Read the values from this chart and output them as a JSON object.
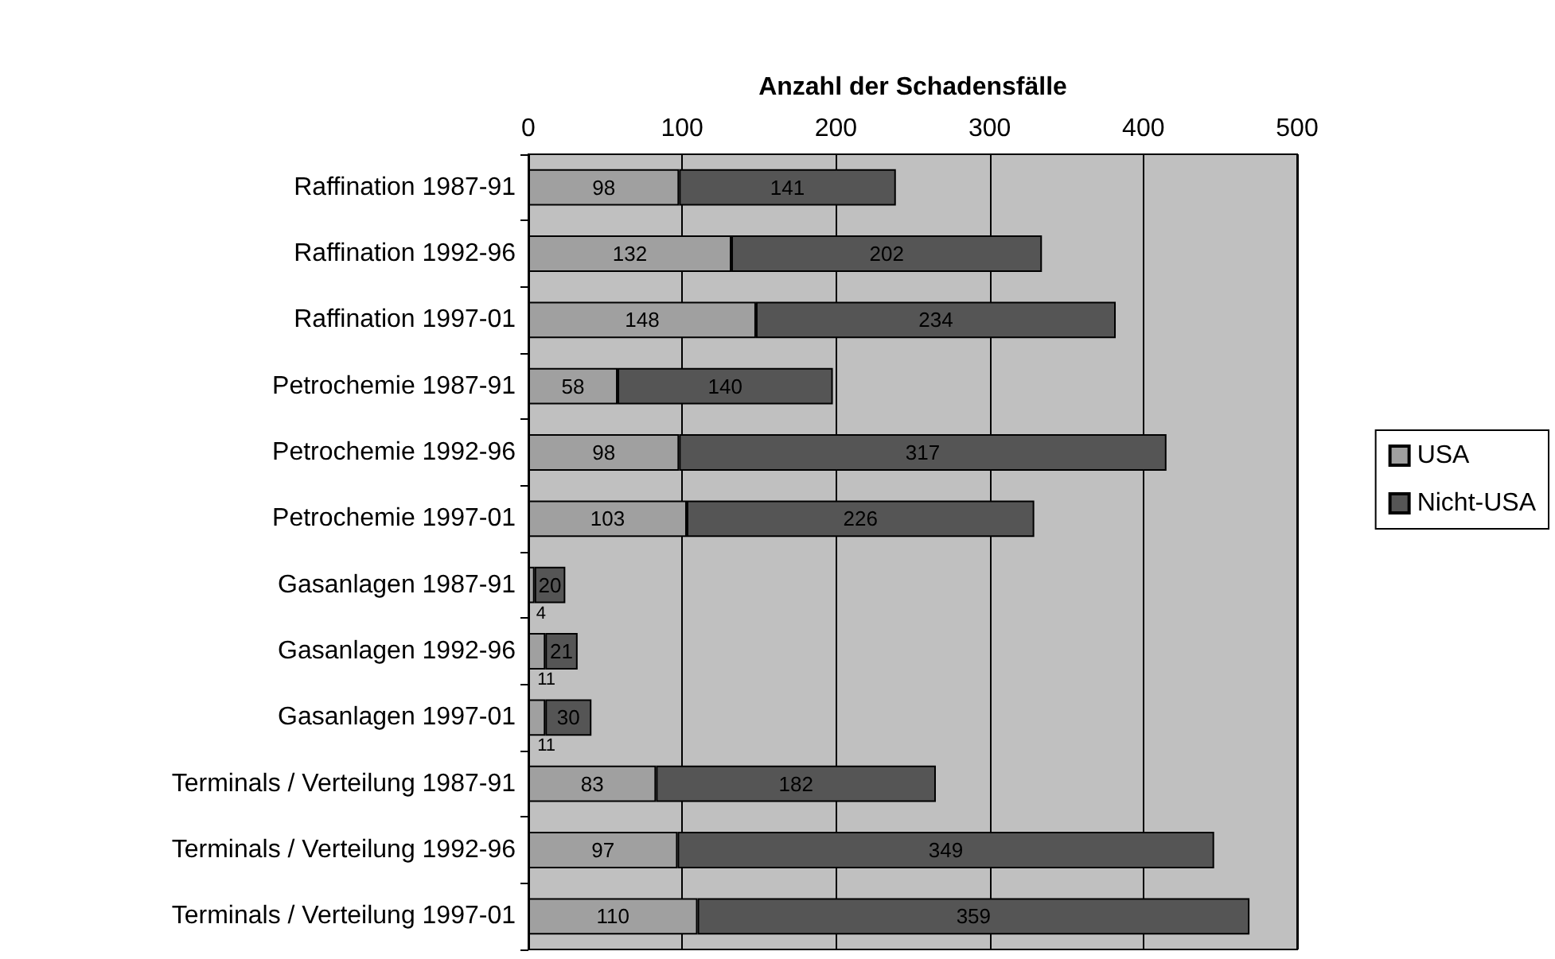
{
  "chart_data": {
    "type": "bar",
    "orientation": "horizontal",
    "stacked": true,
    "xlabel": "Anzahl der Schadensfälle",
    "categories": [
      "Raffination 1987-91",
      "Raffination 1992-96",
      "Raffination 1997-01",
      "Petrochemie 1987-91",
      "Petrochemie 1992-96",
      "Petrochemie 1997-01",
      "Gasanlagen 1987-91",
      "Gasanlagen 1992-96",
      "Gasanlagen 1997-01",
      "Terminals / Verteilung 1987-91",
      "Terminals / Verteilung 1992-96",
      "Terminals / Verteilung 1997-01"
    ],
    "series": [
      {
        "name": "USA",
        "color": "#a0a0a0",
        "values": [
          98,
          132,
          148,
          58,
          98,
          103,
          4,
          11,
          11,
          83,
          97,
          110
        ]
      },
      {
        "name": "Nicht-USA",
        "color": "#555555",
        "values": [
          141,
          202,
          234,
          140,
          317,
          226,
          20,
          21,
          30,
          182,
          349,
          359
        ]
      }
    ],
    "xlim": [
      0,
      500
    ],
    "xticks": [
      0,
      100,
      200,
      300,
      400,
      500
    ],
    "grid": "x",
    "legend": "right",
    "data_labels": true
  }
}
